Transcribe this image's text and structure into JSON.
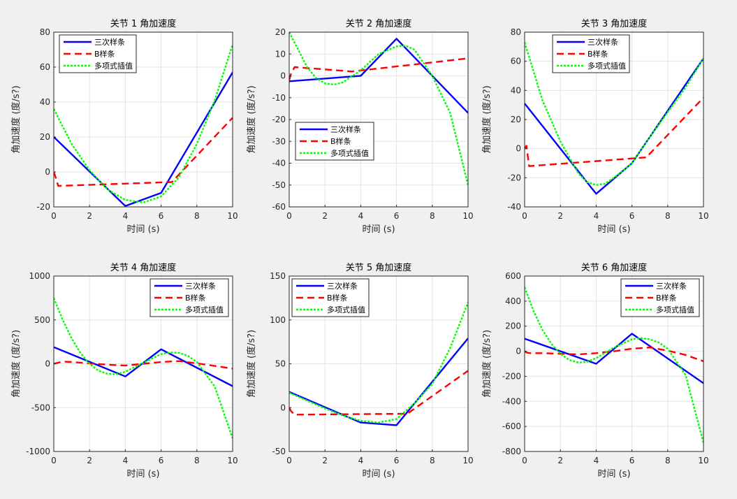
{
  "figure": {
    "background": "#f0f0f0"
  },
  "styles": {
    "series_colors": [
      "#0000ff",
      "#ff0000",
      "#00ff00"
    ],
    "series_dash": [
      "solid",
      "dashed",
      "dotted"
    ]
  },
  "legend_labels": [
    "三次样条",
    "B样条",
    "多项式插值"
  ],
  "chart_data": [
    {
      "type": "line",
      "title": "关节 1 角加速度",
      "xlabel": "时间 (s)",
      "ylabel": "角加速度 (度/s?)",
      "xlim": [
        0,
        10
      ],
      "ylim": [
        -20,
        80
      ],
      "xticks": [
        0,
        2,
        4,
        6,
        8,
        10
      ],
      "yticks": [
        -20,
        0,
        20,
        40,
        60,
        80
      ],
      "grid": true,
      "legend_location": "top-left",
      "series": [
        {
          "name": "三次样条",
          "x": [
            0,
            4,
            6,
            10
          ],
          "y": [
            20,
            -19.5,
            -12,
            57
          ]
        },
        {
          "name": "B样条",
          "x": [
            0,
            0.1,
            0.25,
            6.6,
            10
          ],
          "y": [
            0,
            -3,
            -8,
            -5.8,
            31
          ]
        },
        {
          "name": "多项式插值",
          "x": [
            0,
            1,
            2,
            3,
            4,
            5,
            6,
            7,
            8,
            9,
            10
          ],
          "y": [
            36,
            16,
            1,
            -10,
            -16,
            -17.5,
            -14,
            -3,
            16,
            41,
            73
          ]
        }
      ]
    },
    {
      "type": "line",
      "title": "关节 2 角加速度",
      "xlabel": "时间 (s)",
      "ylabel": "角加速度 (度/s?)",
      "xlim": [
        0,
        10
      ],
      "ylim": [
        -60,
        20
      ],
      "xticks": [
        0,
        2,
        4,
        6,
        8,
        10
      ],
      "yticks": [
        -60,
        -50,
        -40,
        -30,
        -20,
        -10,
        0,
        10,
        20
      ],
      "grid": true,
      "legend_location": "middle-left",
      "series": [
        {
          "name": "三次样条",
          "x": [
            0,
            4,
            6,
            10
          ],
          "y": [
            -2.5,
            0,
            17,
            -17
          ]
        },
        {
          "name": "B样条",
          "x": [
            0,
            0.1,
            0.3,
            3.5,
            10
          ],
          "y": [
            -2,
            1,
            4,
            2,
            8
          ]
        },
        {
          "name": "多项式插值",
          "x": [
            0,
            0.5,
            1,
            1.5,
            2,
            2.5,
            3,
            4,
            5,
            6,
            6.5,
            7,
            8,
            9,
            10
          ],
          "y": [
            20,
            12,
            4,
            -1,
            -3.5,
            -4,
            -3,
            2.5,
            10,
            13.5,
            13.8,
            12,
            0,
            -17,
            -50
          ]
        }
      ]
    },
    {
      "type": "line",
      "title": "关节 3 角加速度",
      "xlabel": "时间 (s)",
      "ylabel": "角加速度 (度/s?)",
      "xlim": [
        0,
        10
      ],
      "ylim": [
        -40,
        80
      ],
      "xticks": [
        0,
        2,
        4,
        6,
        8,
        10
      ],
      "yticks": [
        -40,
        -20,
        0,
        20,
        40,
        60,
        80
      ],
      "grid": true,
      "legend_location": "top-left",
      "series": [
        {
          "name": "三次样条",
          "x": [
            0,
            4,
            6,
            10
          ],
          "y": [
            31,
            -31,
            -10,
            62
          ]
        },
        {
          "name": "B样条",
          "x": [
            0,
            0.1,
            0.25,
            6.8,
            10
          ],
          "y": [
            0,
            2,
            -12,
            -6,
            35
          ]
        },
        {
          "name": "多项式插值",
          "x": [
            0,
            1,
            2,
            3,
            3.5,
            4,
            4.5,
            5,
            6,
            7,
            8,
            9,
            10
          ],
          "y": [
            73,
            33,
            5,
            -17,
            -23,
            -25,
            -24,
            -20,
            -10,
            8,
            25,
            42,
            62
          ]
        }
      ]
    },
    {
      "type": "line",
      "title": "关节 4 角加速度",
      "xlabel": "时间 (s)",
      "ylabel": "角加速度 (度/s?)",
      "xlim": [
        0,
        10
      ],
      "ylim": [
        -1000,
        1000
      ],
      "xticks": [
        0,
        2,
        4,
        6,
        8,
        10
      ],
      "yticks": [
        -1000,
        -500,
        0,
        500,
        1000
      ],
      "grid": true,
      "legend_location": "top-right",
      "series": [
        {
          "name": "三次样条",
          "x": [
            0,
            4,
            6,
            10
          ],
          "y": [
            190,
            -145,
            165,
            -255
          ]
        },
        {
          "name": "B样条",
          "x": [
            0,
            0.5,
            1,
            2,
            3,
            4,
            5,
            6,
            7,
            8,
            9,
            10
          ],
          "y": [
            0,
            25,
            20,
            5,
            -10,
            -20,
            0,
            20,
            30,
            5,
            -25,
            -55
          ]
        },
        {
          "name": "多项式插值",
          "x": [
            0,
            0.5,
            1,
            1.5,
            2,
            2.5,
            3,
            3.5,
            4,
            5,
            6,
            6.5,
            7,
            7.5,
            8,
            9,
            10
          ],
          "y": [
            750,
            500,
            290,
            120,
            0,
            -80,
            -115,
            -120,
            -90,
            10,
            110,
            130,
            125,
            90,
            20,
            -260,
            -850
          ]
        }
      ]
    },
    {
      "type": "line",
      "title": "关节 5 角加速度",
      "xlabel": "时间 (s)",
      "ylabel": "角加速度 (度/s?)",
      "xlim": [
        0,
        10
      ],
      "ylim": [
        -50,
        150
      ],
      "xticks": [
        0,
        2,
        4,
        6,
        8,
        10
      ],
      "yticks": [
        -50,
        0,
        50,
        100,
        150
      ],
      "grid": true,
      "legend_location": "top-left",
      "series": [
        {
          "name": "三次样条",
          "x": [
            0,
            4,
            6,
            10
          ],
          "y": [
            18,
            -17,
            -20,
            79
          ]
        },
        {
          "name": "B样条",
          "x": [
            0,
            0.1,
            0.3,
            6.6,
            10
          ],
          "y": [
            0,
            -4,
            -8,
            -7,
            42
          ]
        },
        {
          "name": "多项式插值",
          "x": [
            0,
            1,
            2,
            3,
            4,
            5,
            6,
            7,
            8,
            9,
            10
          ],
          "y": [
            17,
            8,
            -1,
            -9,
            -15,
            -17,
            -13,
            5,
            27,
            68,
            120
          ]
        }
      ]
    },
    {
      "type": "line",
      "title": "关节 6 角加速度",
      "xlabel": "时间 (s)",
      "ylabel": "角加速度 (度/s?)",
      "xlim": [
        0,
        10
      ],
      "ylim": [
        -800,
        600
      ],
      "xticks": [
        0,
        2,
        4,
        6,
        8,
        10
      ],
      "yticks": [
        -800,
        -600,
        -400,
        -200,
        0,
        200,
        400,
        600
      ],
      "grid": true,
      "legend_location": "top-right",
      "series": [
        {
          "name": "三次样条",
          "x": [
            0,
            4,
            6,
            10
          ],
          "y": [
            100,
            -100,
            140,
            -255
          ]
        },
        {
          "name": "B样条",
          "x": [
            0,
            0.1,
            0.3,
            1,
            2,
            3,
            4,
            5,
            6,
            7,
            8,
            9,
            10
          ],
          "y": [
            0,
            -10,
            -15,
            -15,
            -20,
            -25,
            -15,
            0,
            20,
            30,
            5,
            -30,
            -80
          ]
        },
        {
          "name": "多项式插值",
          "x": [
            0,
            0.5,
            1,
            1.5,
            2,
            2.5,
            3,
            3.5,
            4,
            5,
            6,
            6.5,
            7,
            7.5,
            8,
            9,
            10
          ],
          "y": [
            510,
            320,
            170,
            60,
            -20,
            -70,
            -90,
            -85,
            -55,
            30,
            95,
            105,
            95,
            70,
            20,
            -190,
            -730
          ]
        }
      ]
    }
  ]
}
